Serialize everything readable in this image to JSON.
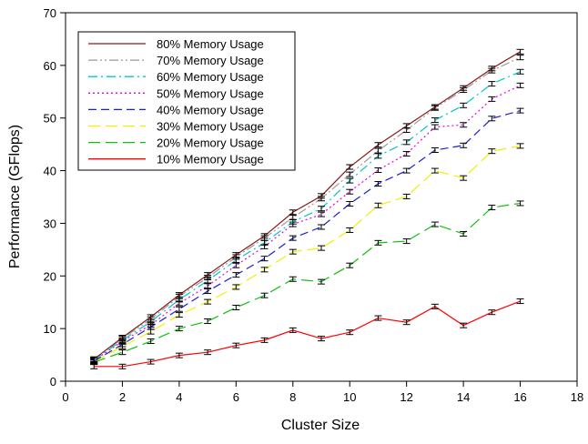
{
  "chart_data": {
    "type": "line",
    "title": "",
    "xlabel": "Cluster Size",
    "ylabel": "Performance (GFlops)",
    "xlim": [
      0,
      18
    ],
    "ylim": [
      0,
      70
    ],
    "xticks": [
      "0",
      "2",
      "4",
      "6",
      "8",
      "10",
      "12",
      "14",
      "16",
      "18"
    ],
    "yticks": [
      "0",
      "10",
      "20",
      "30",
      "40",
      "50",
      "60",
      "70"
    ],
    "grid": false,
    "legend_position": "top-left",
    "error_bars": true,
    "x": [
      1,
      2,
      3,
      4,
      5,
      6,
      7,
      8,
      9,
      10,
      11,
      12,
      13,
      14,
      15,
      16
    ],
    "series": [
      {
        "name": "80% Memory Usage",
        "color": "#8b1a1a",
        "dash": "solid",
        "values": [
          4.2,
          8.3,
          12.2,
          16.4,
          20.2,
          24.0,
          27.6,
          32.1,
          35.2,
          40.7,
          44.9,
          48.5,
          52.1,
          55.7,
          59.4,
          62.6
        ]
      },
      {
        "name": "70% Memory Usage",
        "color": "#9a9a9a",
        "dash": "dashdotdot",
        "values": [
          4.1,
          8.1,
          11.8,
          16.1,
          19.7,
          23.6,
          27.2,
          31.1,
          34.7,
          39.3,
          43.8,
          47.7,
          51.9,
          55.3,
          59.0,
          61.5
        ]
      },
      {
        "name": "60% Memory Usage",
        "color": "#00c8c8",
        "dash": "dashdot",
        "values": [
          4.0,
          7.8,
          11.3,
          15.5,
          19.1,
          23.0,
          26.3,
          30.3,
          32.8,
          38.1,
          42.8,
          45.4,
          49.6,
          52.4,
          56.5,
          58.8
        ]
      },
      {
        "name": "50% Memory Usage",
        "color": "#e600e6",
        "dash": "dotted",
        "values": [
          3.9,
          7.6,
          10.7,
          14.8,
          18.1,
          22.0,
          25.6,
          29.8,
          31.7,
          36.0,
          40.1,
          43.2,
          48.3,
          48.7,
          53.6,
          56.2
        ]
      },
      {
        "name": "40% Memory Usage",
        "color": "#1f1fd0",
        "dash": "dashed",
        "values": [
          3.8,
          7.0,
          10.3,
          13.7,
          17.1,
          20.2,
          23.3,
          27.2,
          29.3,
          33.7,
          37.5,
          40.0,
          43.9,
          44.8,
          49.9,
          51.4
        ]
      },
      {
        "name": "30% Memory Usage",
        "color": "#f0f000",
        "dash": "longdash",
        "values": [
          3.7,
          6.6,
          9.4,
          12.6,
          15.1,
          17.9,
          21.2,
          24.6,
          25.3,
          28.7,
          33.4,
          35.1,
          40.0,
          38.6,
          43.7,
          44.7
        ]
      },
      {
        "name": "20% Memory Usage",
        "color": "#10c010",
        "dash": "longdash",
        "values": [
          3.6,
          5.5,
          7.6,
          10.0,
          11.4,
          14.0,
          16.3,
          19.4,
          18.9,
          22.0,
          26.3,
          26.6,
          29.8,
          28.0,
          33.0,
          33.8
        ]
      },
      {
        "name": "10% Memory Usage",
        "color": "#ff0000",
        "dash": "solid",
        "values": [
          2.8,
          2.8,
          3.7,
          4.9,
          5.5,
          6.8,
          7.8,
          9.7,
          8.1,
          9.3,
          12.0,
          11.2,
          14.2,
          10.6,
          13.1,
          15.2
        ]
      }
    ]
  }
}
